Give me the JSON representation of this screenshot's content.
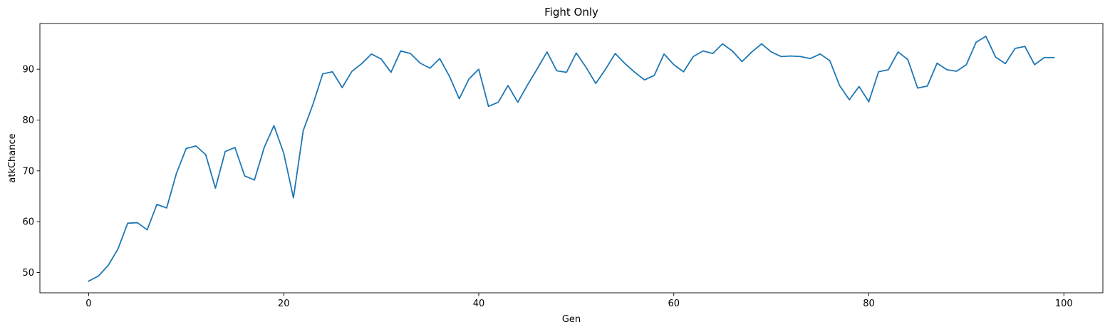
{
  "chart_data": {
    "type": "line",
    "title": "Fight Only",
    "xlabel": "Gen",
    "ylabel": "atkChance",
    "xlim": [
      -5,
      104
    ],
    "ylim": [
      46,
      99
    ],
    "xticks": [
      0,
      20,
      40,
      60,
      80,
      100
    ],
    "yticks": [
      50,
      60,
      70,
      80,
      90
    ],
    "grid": false,
    "series": [
      {
        "color": "#1f77b4",
        "x": [
          0,
          1,
          2,
          3,
          4,
          5,
          6,
          7,
          8,
          9,
          10,
          11,
          12,
          13,
          14,
          15,
          16,
          17,
          18,
          19,
          20,
          21,
          22,
          23,
          24,
          25,
          26,
          27,
          28,
          29,
          30,
          31,
          32,
          33,
          34,
          35,
          36,
          37,
          38,
          39,
          40,
          41,
          42,
          43,
          44,
          45,
          46,
          47,
          48,
          49,
          50,
          51,
          52,
          53,
          54,
          55,
          56,
          57,
          58,
          59,
          60,
          61,
          62,
          63,
          64,
          65,
          66,
          67,
          68,
          69,
          70,
          71,
          72,
          73,
          74,
          75,
          76,
          77,
          78,
          79,
          80,
          81,
          82,
          83,
          84,
          85,
          86,
          87,
          88,
          89,
          90,
          91,
          92,
          93,
          94,
          95,
          96,
          97,
          98,
          99
        ],
        "values": [
          48.3,
          49.3,
          51.4,
          54.6,
          59.7,
          59.8,
          58.4,
          63.4,
          62.7,
          69.5,
          74.4,
          74.9,
          73.2,
          66.6,
          73.8,
          74.6,
          69.0,
          68.2,
          74.6,
          78.9,
          73.5,
          64.7,
          77.9,
          83.1,
          89.1,
          89.5,
          86.4,
          89.6,
          91.1,
          93.0,
          92.0,
          89.4,
          93.6,
          93.1,
          91.2,
          90.2,
          92.1,
          88.6,
          84.2,
          88.1,
          90.0,
          82.7,
          83.5,
          86.8,
          83.5,
          86.9,
          90.1,
          93.4,
          89.7,
          89.4,
          93.2,
          90.4,
          87.2,
          90.0,
          93.1,
          91.1,
          89.4,
          87.9,
          88.8,
          93.0,
          90.9,
          89.5,
          92.5,
          93.6,
          93.1,
          95.0,
          93.6,
          91.5,
          93.4,
          95.0,
          93.4,
          92.5,
          92.6,
          92.5,
          92.1,
          93.0,
          91.7,
          86.8,
          84.0,
          86.6,
          83.6,
          89.5,
          89.9,
          93.4,
          91.9,
          86.3,
          86.7,
          91.2,
          89.9,
          89.6,
          90.9,
          95.3,
          96.5,
          92.4,
          91.1,
          94.1,
          94.5,
          90.9,
          92.3,
          92.3
        ]
      }
    ]
  }
}
